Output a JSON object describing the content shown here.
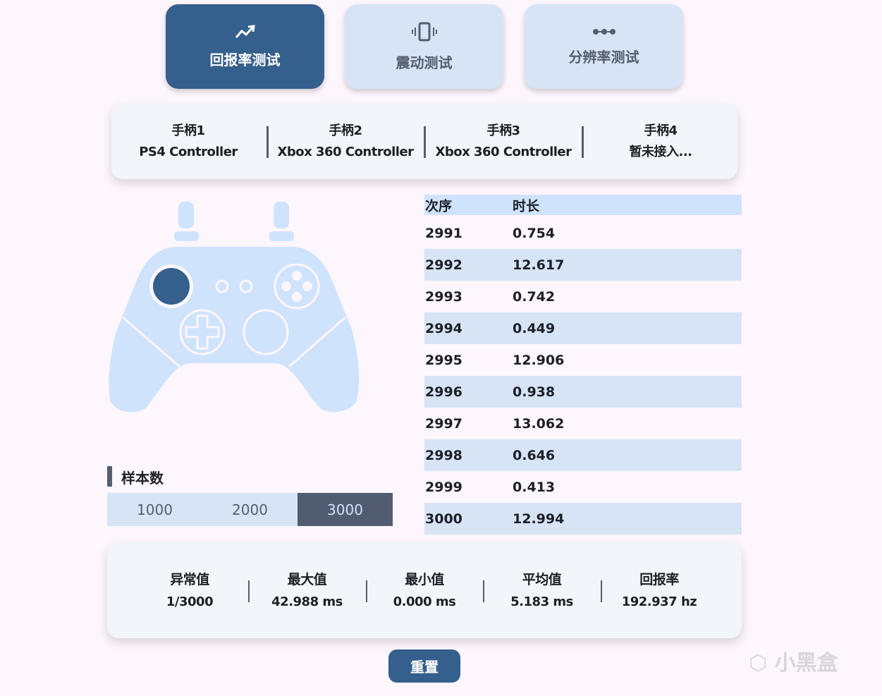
{
  "tabs": [
    {
      "label": "回报率测试",
      "icon": "trending-up-icon",
      "active": true
    },
    {
      "label": "震动测试",
      "icon": "vibration-icon",
      "active": false
    },
    {
      "label": "分辨率测试",
      "icon": "dots-icon",
      "active": false
    }
  ],
  "controllers": [
    {
      "slot": "手柄1",
      "name": "PS4 Controller"
    },
    {
      "slot": "手柄2",
      "name": "Xbox 360 Controller"
    },
    {
      "slot": "手柄3",
      "name": "Xbox 360 Controller"
    },
    {
      "slot": "手柄4",
      "name": "暂未接入..."
    }
  ],
  "table": {
    "headers": [
      "次序",
      "时长"
    ],
    "rows": [
      [
        "2991",
        "0.754"
      ],
      [
        "2992",
        "12.617"
      ],
      [
        "2993",
        "0.742"
      ],
      [
        "2994",
        "0.449"
      ],
      [
        "2995",
        "12.906"
      ],
      [
        "2996",
        "0.938"
      ],
      [
        "2997",
        "13.062"
      ],
      [
        "2998",
        "0.646"
      ],
      [
        "2999",
        "0.413"
      ],
      [
        "3000",
        "12.994"
      ]
    ]
  },
  "samples": {
    "label": "样本数",
    "options": [
      "1000",
      "2000",
      "3000"
    ],
    "selected": "3000"
  },
  "stats": [
    {
      "label": "异常值",
      "value": "1/3000"
    },
    {
      "label": "最大值",
      "value": "42.988 ms"
    },
    {
      "label": "最小值",
      "value": "0.000 ms"
    },
    {
      "label": "平均值",
      "value": "5.183 ms"
    },
    {
      "label": "回报率",
      "value": "192.937 hz"
    }
  ],
  "reset_label": "重置",
  "watermark": "小黑盒",
  "colors": {
    "accent": "#355f8c",
    "light": "#d6e4f6",
    "controller": "#cfe3fd",
    "dark": "#525c70"
  }
}
